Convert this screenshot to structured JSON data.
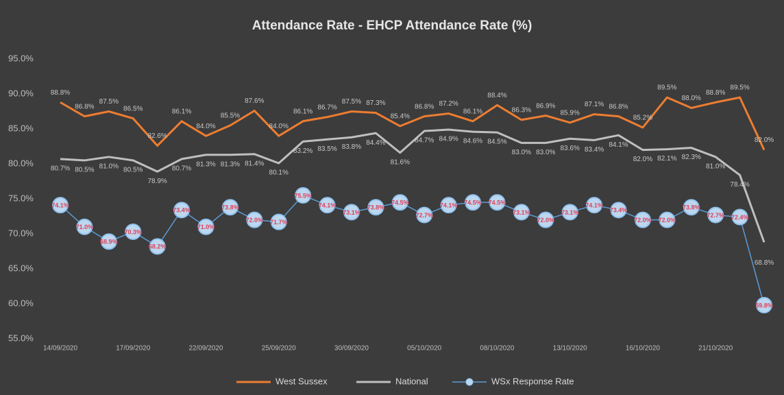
{
  "chart_data": {
    "type": "line",
    "title": "Attendance Rate - EHCP Attendance Rate (%)",
    "categories": [
      "14/09/2020",
      null,
      null,
      "17/09/2020",
      null,
      null,
      "22/09/2020",
      null,
      null,
      "25/09/2020",
      null,
      null,
      "30/09/2020",
      null,
      null,
      "05/10/2020",
      null,
      null,
      "08/10/2020",
      null,
      null,
      "13/10/2020",
      null,
      null,
      "16/10/2020",
      null,
      null,
      "21/10/2020",
      null,
      null
    ],
    "ylim": [
      55,
      95
    ],
    "yticks": [
      {
        "value": 55,
        "label": "55.0%"
      },
      {
        "value": 60,
        "label": "60.0%"
      },
      {
        "value": 65,
        "label": "65.0%"
      },
      {
        "value": 70,
        "label": "70.0%"
      },
      {
        "value": 75,
        "label": "75.0%"
      },
      {
        "value": 80,
        "label": "80.0%"
      },
      {
        "value": 85,
        "label": "85.0%"
      },
      {
        "value": 90,
        "label": "90.0%"
      },
      {
        "value": 95,
        "label": "95.0%"
      }
    ],
    "grid": false,
    "legend": "bottom",
    "series": [
      {
        "name": "West Sussex",
        "color": "#ed7d31",
        "values": [
          88.8,
          86.8,
          87.5,
          86.5,
          82.6,
          86.1,
          84.0,
          85.5,
          87.6,
          84.0,
          86.1,
          86.7,
          87.5,
          87.3,
          85.4,
          86.8,
          87.2,
          86.1,
          88.4,
          86.3,
          86.9,
          85.9,
          87.1,
          86.8,
          85.2,
          89.5,
          88.0,
          88.8,
          89.5,
          82.0
        ],
        "value_labels": [
          "88.8%",
          "86.8%",
          "87.5%",
          "86.5%",
          "82.6%",
          "86.1%",
          "84.0%",
          "85.5%",
          "87.6%",
          "84.0%",
          "86.1%",
          "86.7%",
          "87.5%",
          "87.3%",
          "85.4%",
          "86.8%",
          "87.2%",
          "86.1%",
          "88.4%",
          "86.3%",
          "86.9%",
          "85.9%",
          "87.1%",
          "86.8%",
          "85.2%",
          "89.5%",
          "88.0%",
          "88.8%",
          "89.5%",
          "82.0%"
        ]
      },
      {
        "name": "National",
        "color": "#bfbfbf",
        "values": [
          80.7,
          80.5,
          81.0,
          80.5,
          78.9,
          80.7,
          81.3,
          81.3,
          81.4,
          80.1,
          83.2,
          83.5,
          83.8,
          84.4,
          81.6,
          84.7,
          84.9,
          84.6,
          84.5,
          83.0,
          83.0,
          83.6,
          83.4,
          84.1,
          82.0,
          82.1,
          82.3,
          81.0,
          78.4,
          68.8
        ],
        "value_labels": [
          "80.7%",
          "80.5%",
          "81.0%",
          "80.5%",
          "78.9%",
          "80.7%",
          "81.3%",
          "81.3%",
          "81.4%",
          "80.1%",
          "83.2%",
          "83.5%",
          "83.8%",
          "84.4%",
          "81.6%",
          "84.7%",
          "84.9%",
          "84.6%",
          "84.5%",
          "83.0%",
          "83.0%",
          "83.6%",
          "83.4%",
          "84.1%",
          "82.0%",
          "82.1%",
          "82.3%",
          "81.0%",
          "78.4%",
          "68.8%"
        ]
      },
      {
        "name": "WSx Response Rate",
        "color": "#5b9bd5",
        "values": [
          74.1,
          71.0,
          68.9,
          70.3,
          68.2,
          73.4,
          71.0,
          73.8,
          72.0,
          71.7,
          75.5,
          74.1,
          73.1,
          73.8,
          74.5,
          72.7,
          74.1,
          74.5,
          74.5,
          73.1,
          72.0,
          73.1,
          74.1,
          73.4,
          72.0,
          72.0,
          73.8,
          72.7,
          72.4,
          59.8
        ],
        "value_labels": [
          "74.1%",
          "71.0%",
          "68.9%",
          "70.3%",
          "68.2%",
          "73.4%",
          "71.0%",
          "73.8%",
          "72.0%",
          "71.7%",
          "75.5%",
          "74.1%",
          "73.1%",
          "73.8%",
          "74.5%",
          "72.7%",
          "74.1%",
          "74.5%",
          "74.5%",
          "73.1%",
          "72.0%",
          "73.1%",
          "74.1%",
          "73.4%",
          "72.0%",
          "72.0%",
          "73.8%",
          "72.7%",
          "72.4%",
          "59.8%"
        ]
      }
    ]
  }
}
